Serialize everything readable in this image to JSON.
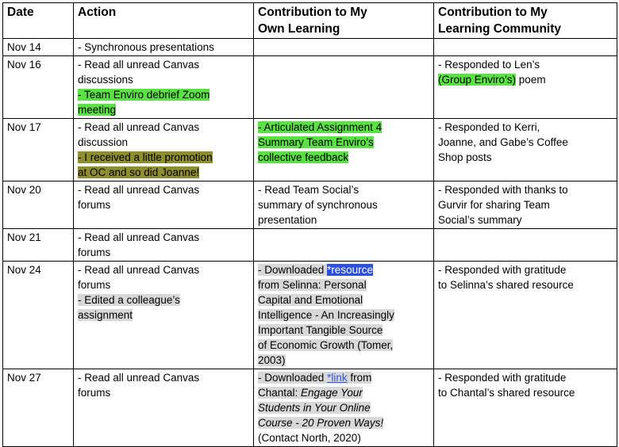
{
  "colors": {
    "highlight_green": "#5ae144",
    "highlight_olive": "#8f8e2f",
    "highlight_gray": "#d8d8d8",
    "link_selection_blue": "#2b50e0",
    "link_blue": "#2f55e2",
    "border_black": "#000000"
  },
  "table": {
    "columns": [
      {
        "lines": [
          "Date"
        ]
      },
      {
        "lines": [
          "Action"
        ]
      },
      {
        "lines": [
          "Contribution to My",
          "Own Learning"
        ]
      },
      {
        "lines": [
          "Contribution to My",
          "Learning Community"
        ]
      }
    ],
    "rows": [
      {
        "date": "Nov 14",
        "action": [
          [
            {
              "t": "- Synchronous presentations"
            }
          ]
        ],
        "own": [],
        "community": []
      },
      {
        "date": "Nov 16",
        "action": [
          [
            {
              "t": "- Read all unread Canvas"
            }
          ],
          [
            {
              "t": "discussions"
            }
          ],
          [
            {
              "t": "- Team Enviro debrief Zoom",
              "h": "green"
            }
          ],
          [
            {
              "t": "meeting",
              "h": "green"
            }
          ]
        ],
        "own": [],
        "community": [
          [
            {
              "t": "- Responded to Len’s"
            }
          ],
          [
            {
              "t": "(Group Enviro’s)",
              "h": "green"
            },
            {
              "t": " poem"
            }
          ]
        ]
      },
      {
        "date": "Nov 17",
        "action": [
          [
            {
              "t": "- Read all unread Canvas"
            }
          ],
          [
            {
              "t": "discussion"
            }
          ],
          [
            {
              "t": "- I received a little promotion",
              "h": "olive"
            }
          ],
          [
            {
              "t": "at OC and so did Joanne!",
              "h": "olive"
            }
          ]
        ],
        "own": [
          [
            {
              "t": "- Articulated Assignment 4",
              "h": "green"
            }
          ],
          [
            {
              "t": "Summary Team Enviro’s",
              "h": "green"
            }
          ],
          [
            {
              "t": "collective feedback",
              "h": "green"
            }
          ]
        ],
        "community": [
          [
            {
              "t": "- Responded to Kerri,"
            }
          ],
          [
            {
              "t": "Joanne, and Gabe’s Coffee"
            }
          ],
          [
            {
              "t": "Shop posts"
            }
          ]
        ]
      },
      {
        "date": "Nov 20",
        "action": [
          [
            {
              "t": "- Read all unread Canvas"
            }
          ],
          [
            {
              "t": "forums"
            }
          ]
        ],
        "own": [
          [
            {
              "t": "- Read Team Social’s"
            }
          ],
          [
            {
              "t": "summary of synchronous"
            }
          ],
          [
            {
              "t": "presentation"
            }
          ]
        ],
        "community": [
          [
            {
              "t": "- Responded with thanks to"
            }
          ],
          [
            {
              "t": "Gurvir for sharing Team"
            }
          ],
          [
            {
              "t": "Social’s summary"
            }
          ]
        ]
      },
      {
        "date": "Nov 21",
        "action": [
          [
            {
              "t": "- Read all unread Canvas"
            }
          ],
          [
            {
              "t": "forums"
            }
          ]
        ],
        "own": [],
        "community": []
      },
      {
        "date": "Nov 24",
        "action": [
          [
            {
              "t": "- Read all unread Canvas"
            }
          ],
          [
            {
              "t": "forums"
            }
          ],
          [
            {
              "t": "- Edited a colleague’s",
              "h": "gray"
            }
          ],
          [
            {
              "t": "assignment",
              "h": "gray"
            }
          ]
        ],
        "own": [
          [
            {
              "t": "- Downloaded ",
              "h": "gray"
            },
            {
              "t": "*resource",
              "h": "blue",
              "link": true
            }
          ],
          [
            {
              "t": "from Selinna: Personal",
              "h": "gray"
            }
          ],
          [
            {
              "t": "Capital and Emotional",
              "h": "gray"
            }
          ],
          [
            {
              "t": "Intelligence - An Increasingly",
              "h": "gray"
            }
          ],
          [
            {
              "t": "Important Tangible Source",
              "h": "gray"
            }
          ],
          [
            {
              "t": "of Economic Growth (Tomer,",
              "h": "gray"
            }
          ],
          [
            {
              "t": "2003)",
              "h": "gray"
            }
          ]
        ],
        "community": [
          [
            {
              "t": "- Responded with gratitude"
            }
          ],
          [
            {
              "t": "to Selinna’s shared resource"
            }
          ]
        ]
      },
      {
        "date": "Nov 27",
        "action": [
          [
            {
              "t": "- Read all unread Canvas"
            }
          ],
          [
            {
              "t": "forums"
            }
          ]
        ],
        "own": [
          [
            {
              "t": "- Downloaded ",
              "h": "gray"
            },
            {
              "t": "*link",
              "h": "gray",
              "link": true
            },
            {
              "t": " from",
              "h": "gray"
            }
          ],
          [
            {
              "t": "Chantal: ",
              "h": "gray"
            },
            {
              "t": "Engage Your",
              "h": "gray",
              "i": true
            }
          ],
          [
            {
              "t": "Students in Your Online",
              "h": "gray",
              "i": true
            }
          ],
          [
            {
              "t": "Course - 20 Proven Ways!",
              "h": "gray",
              "i": true
            }
          ],
          [
            {
              "t": "(Contact North, 2020)"
            }
          ]
        ],
        "community": [
          [
            {
              "t": "- Responded with gratitude"
            }
          ],
          [
            {
              "t": "to Chantal’s shared resource"
            }
          ]
        ]
      }
    ]
  }
}
